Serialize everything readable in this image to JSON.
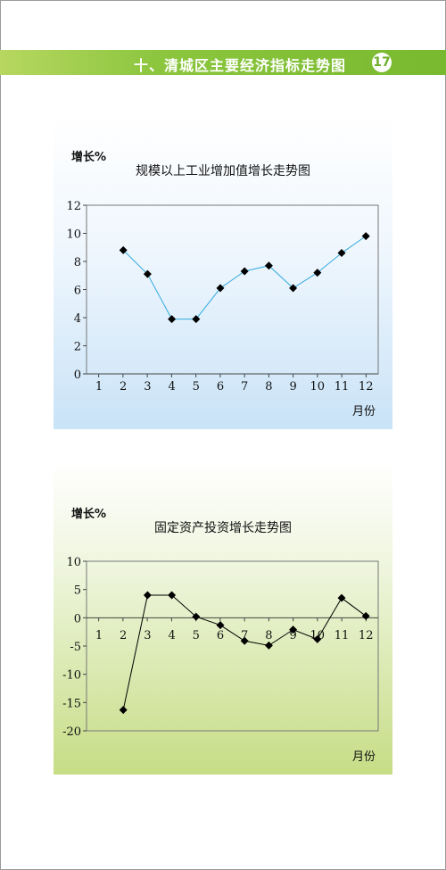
{
  "header": {
    "title": "十、清城区主要经济指标走势图",
    "page_number": "17"
  },
  "colors": {
    "header_green": "#8cc63f",
    "chart1_line": "#33aadd",
    "chart2_line": "#000000",
    "marker": "#000000"
  },
  "chart_data": [
    {
      "type": "line",
      "title": "规模以上工业增加值增长走势图",
      "ylabel": "增长%",
      "xlabel": "月份",
      "categories": [
        1,
        2,
        3,
        4,
        5,
        6,
        7,
        8,
        9,
        10,
        11,
        12
      ],
      "series": [
        {
          "values": [
            null,
            8.8,
            7.1,
            3.9,
            3.9,
            6.1,
            7.3,
            7.7,
            6.1,
            7.2,
            8.6,
            9.8
          ]
        }
      ],
      "ylim": [
        0,
        12
      ],
      "yticks": [
        0,
        2,
        4,
        6,
        8,
        10,
        12
      ],
      "grid": false,
      "legend": "none"
    },
    {
      "type": "line",
      "title": "固定资产投资增长走势图",
      "ylabel": "增长%",
      "xlabel": "月份",
      "categories": [
        1,
        2,
        3,
        4,
        5,
        6,
        7,
        8,
        9,
        10,
        11,
        12
      ],
      "series": [
        {
          "values": [
            null,
            -16.3,
            4.0,
            4.0,
            0.2,
            -1.3,
            -4.1,
            -4.9,
            -2.1,
            -3.8,
            3.5,
            0.3
          ]
        }
      ],
      "ylim": [
        -20,
        10
      ],
      "yticks": [
        -20,
        -15,
        -10,
        -5,
        0,
        5,
        10
      ],
      "grid": false,
      "legend": "none"
    }
  ]
}
